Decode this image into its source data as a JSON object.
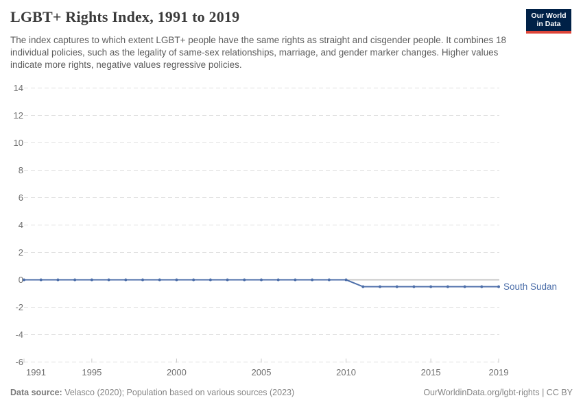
{
  "header": {
    "title": "LGBT+ Rights Index, 1991 to 2019",
    "subtitle": "The index captures to which extent LGBT+ people have the same rights as straight and cisgender people. It combines 18 individual policies, such as the legality of same-sex relationships, marriage, and gender marker changes. Higher values indicate more rights, negative values regressive policies.",
    "logo": {
      "line1": "Our World",
      "line2": "in Data",
      "bg_color": "#002147",
      "accent_color": "#dd4539"
    }
  },
  "chart_data": {
    "type": "line",
    "title": "LGBT+ Rights Index, 1991 to 2019",
    "x": [
      1991,
      1992,
      1993,
      1994,
      1995,
      1996,
      1997,
      1998,
      1999,
      2000,
      2001,
      2002,
      2003,
      2004,
      2005,
      2006,
      2007,
      2008,
      2009,
      2010,
      2011,
      2012,
      2013,
      2014,
      2015,
      2016,
      2017,
      2018,
      2019
    ],
    "series": [
      {
        "name": "South Sudan",
        "color": "#4c6ea9",
        "values": [
          0,
          0,
          0,
          0,
          0,
          0,
          0,
          0,
          0,
          0,
          0,
          0,
          0,
          0,
          0,
          0,
          0,
          0,
          0,
          0,
          -0.5,
          -0.5,
          -0.5,
          -0.5,
          -0.5,
          -0.5,
          -0.5,
          -0.5,
          -0.5
        ]
      }
    ],
    "ylim": [
      -6,
      14
    ],
    "ytick_step": 2,
    "xticks": [
      1991,
      1995,
      2000,
      2005,
      2010,
      2015,
      2019
    ],
    "grid": "horizontal-dashed",
    "zero_line": true,
    "legend": "end-of-line-label",
    "axis_label_color": "#6e6e6e",
    "gridline_color": "#dedede",
    "zero_line_color": "#c7c7c7"
  },
  "footer": {
    "source_label": "Data source:",
    "source_text": "Velasco (2020); Population based on various sources (2023)",
    "right_text": "OurWorldinData.org/lgbt-rights | CC BY"
  }
}
